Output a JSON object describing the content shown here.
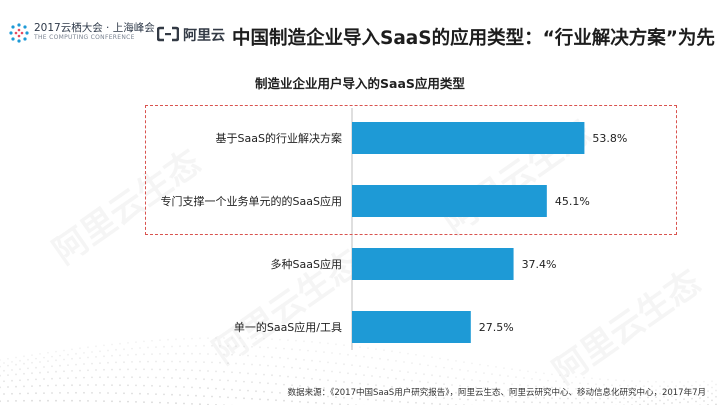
{
  "header": {
    "event_title": "2017云栖大会 · 上海峰会",
    "event_subtitle": "THE COMPUTING CONFERENCE",
    "brand_name": "阿里云",
    "slide_title": "中国制造企业导入SaaS的应用类型：“行业解决方案”为先"
  },
  "watermark_text": "阿里云生态",
  "chart_data": {
    "type": "bar",
    "orientation": "horizontal",
    "title": "制造业企业用户导入的SaaS应用类型",
    "categories": [
      "基于SaaS的行业解决方案",
      "专门支撑一个业务单元的的SaaS应用",
      "多种SaaS应用",
      "单一的SaaS应用/工具"
    ],
    "values": [
      53.8,
      45.1,
      37.4,
      27.5
    ],
    "value_labels": [
      "53.8%",
      "45.1%",
      "37.4%",
      "27.5%"
    ],
    "unit": "%",
    "bar_color": "#1e9ad6",
    "highlight_color": "#d9534f",
    "highlighted_categories": [
      "基于SaaS的行业解决方案",
      "专门支撑一个业务单元的的SaaS应用"
    ],
    "grid": false
  },
  "footer": {
    "source_text": "数据来源：《2017中国SaaS用户研究报告》，阿里云生态、阿里云研究中心、移动信息化研究中心，2017年7月"
  }
}
